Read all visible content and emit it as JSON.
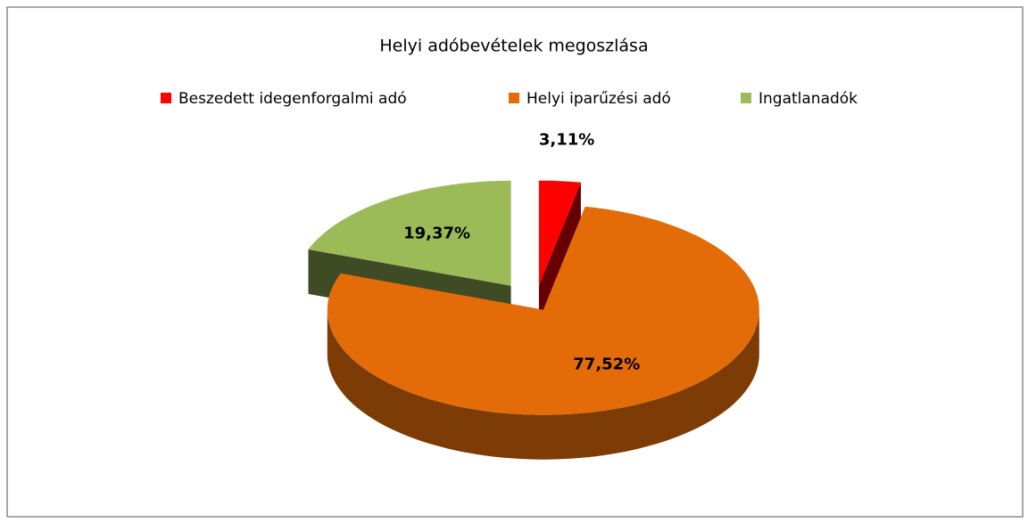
{
  "chart_data": {
    "type": "pie",
    "title": "Helyi adóbevételek megoszlása",
    "categories": [
      "Beszedett idegenforgalmi adó",
      "Helyi iparűzési adó",
      "Ingatlanadók"
    ],
    "values": [
      3.11,
      77.52,
      19.37
    ],
    "value_labels": [
      "3,11%",
      "77,52%",
      "19,37%"
    ],
    "colors": [
      "#ff0000",
      "#e36c09",
      "#9bbb59"
    ],
    "legend": "top"
  }
}
